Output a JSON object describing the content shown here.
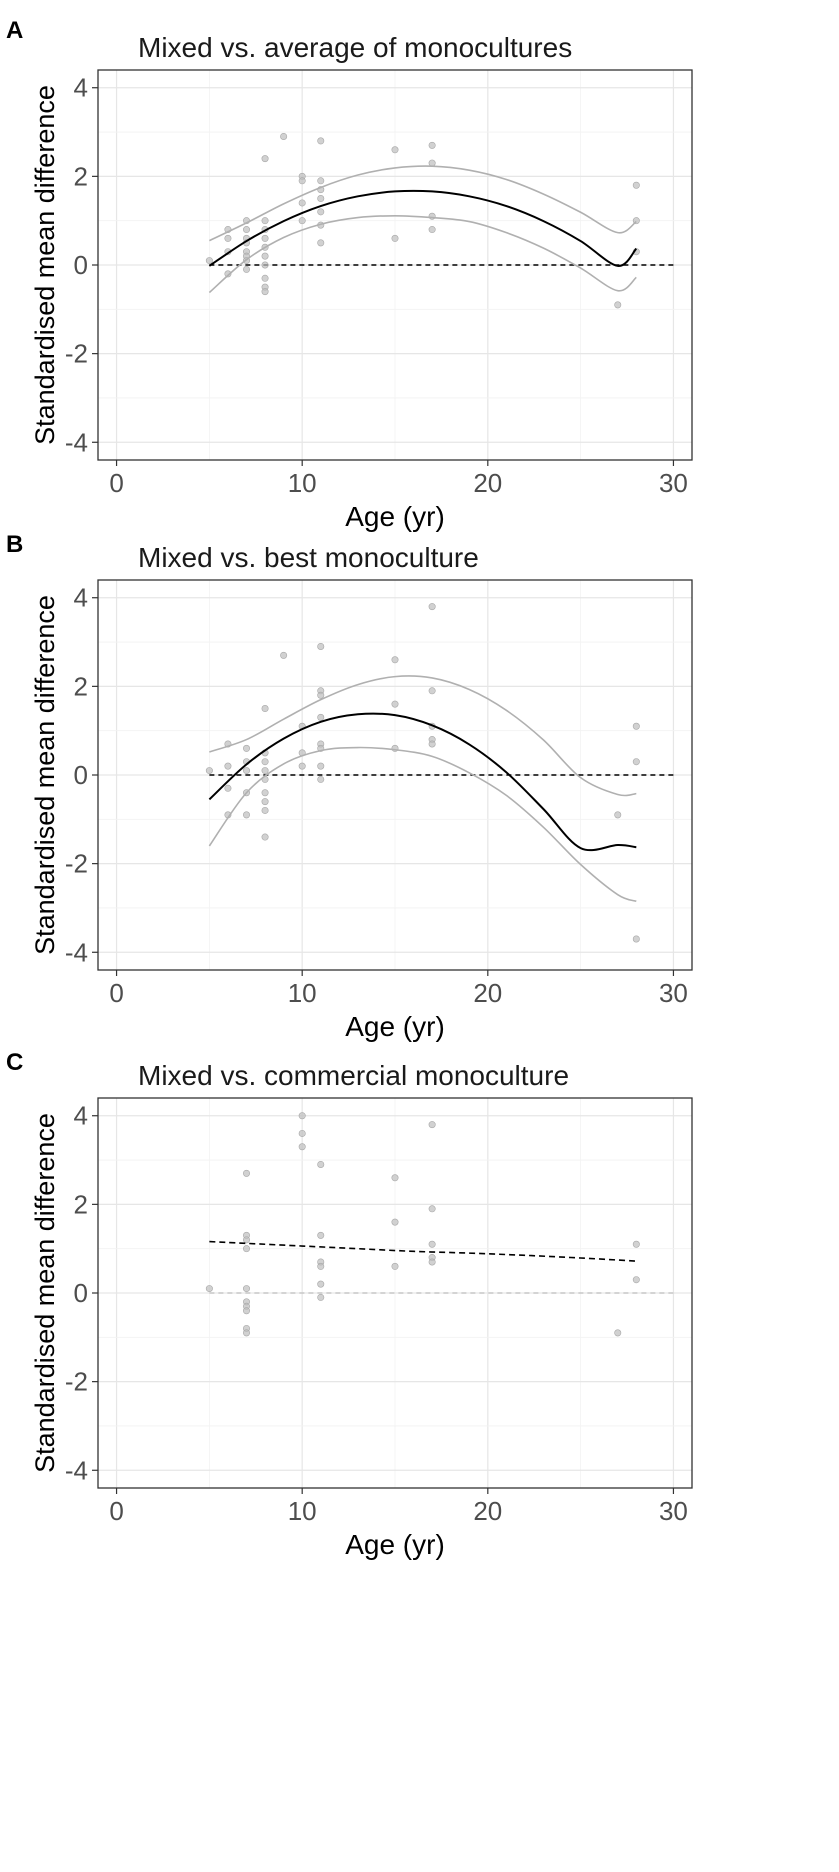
{
  "chart_data": [
    {
      "panel": "A",
      "type": "scatter",
      "title": "Mixed vs. average of monocultures",
      "xlabel": "Age (yr)",
      "ylabel": "Standardised mean difference",
      "xlim": [
        -1,
        31
      ],
      "ylim": [
        -4.4,
        4.4
      ],
      "xticks": [
        0,
        10,
        20,
        30
      ],
      "yticks": [
        -4,
        -2,
        0,
        2,
        4
      ],
      "reference_line": 0,
      "reference_style": "dark",
      "points": [
        [
          5,
          0.1
        ],
        [
          6,
          0.8
        ],
        [
          6,
          0.6
        ],
        [
          6,
          0.3
        ],
        [
          6,
          -0.2
        ],
        [
          7,
          1.0
        ],
        [
          7,
          0.8
        ],
        [
          7,
          0.6
        ],
        [
          7,
          0.5
        ],
        [
          7,
          0.3
        ],
        [
          7,
          0.2
        ],
        [
          7,
          0.1
        ],
        [
          7,
          -0.1
        ],
        [
          8,
          2.4
        ],
        [
          8,
          1.0
        ],
        [
          8,
          0.8
        ],
        [
          8,
          0.6
        ],
        [
          8,
          0.4
        ],
        [
          8,
          0.2
        ],
        [
          8,
          0.0
        ],
        [
          8,
          -0.3
        ],
        [
          8,
          -0.5
        ],
        [
          8,
          -0.6
        ],
        [
          9,
          2.9
        ],
        [
          10,
          2.0
        ],
        [
          10,
          1.9
        ],
        [
          10,
          1.4
        ],
        [
          10,
          1.0
        ],
        [
          11,
          2.8
        ],
        [
          11,
          1.9
        ],
        [
          11,
          1.7
        ],
        [
          11,
          1.5
        ],
        [
          11,
          1.2
        ],
        [
          11,
          0.9
        ],
        [
          11,
          0.5
        ],
        [
          15,
          2.6
        ],
        [
          15,
          0.6
        ],
        [
          17,
          2.7
        ],
        [
          17,
          2.3
        ],
        [
          17,
          1.1
        ],
        [
          17,
          0.8
        ],
        [
          27,
          -0.9
        ],
        [
          28,
          1.8
        ],
        [
          28,
          1.0
        ],
        [
          28,
          0.3
        ]
      ],
      "fit": {
        "x": [
          5,
          7,
          9,
          11,
          13,
          15,
          17,
          19,
          21,
          23,
          25,
          27,
          28
        ],
        "y": [
          -0.02,
          0.54,
          0.99,
          1.33,
          1.55,
          1.66,
          1.66,
          1.55,
          1.33,
          0.99,
          0.54,
          -0.02,
          0.37
        ]
      },
      "ci_upper": {
        "x": [
          5,
          7,
          9,
          11,
          13,
          15,
          17,
          19,
          21,
          23,
          25,
          27,
          28
        ],
        "y": [
          0.55,
          0.95,
          1.38,
          1.75,
          2.03,
          2.19,
          2.23,
          2.14,
          1.93,
          1.6,
          1.19,
          0.73,
          0.98
        ]
      },
      "ci_lower": {
        "x": [
          5,
          7,
          9,
          11,
          13,
          15,
          17,
          19,
          21,
          23,
          25,
          27,
          28
        ],
        "y": [
          -0.62,
          0.12,
          0.62,
          0.92,
          1.07,
          1.11,
          1.07,
          0.98,
          0.73,
          0.38,
          -0.07,
          -0.58,
          -0.28
        ]
      }
    },
    {
      "panel": "B",
      "type": "scatter",
      "title": "Mixed vs. best monoculture",
      "xlabel": "Age (yr)",
      "ylabel": "Standardised mean difference",
      "xlim": [
        -1,
        31
      ],
      "ylim": [
        -4.4,
        4.4
      ],
      "xticks": [
        0,
        10,
        20,
        30
      ],
      "yticks": [
        -4,
        -2,
        0,
        2,
        4
      ],
      "reference_line": 0,
      "reference_style": "dark",
      "points": [
        [
          5,
          0.1
        ],
        [
          6,
          0.7
        ],
        [
          6,
          0.2
        ],
        [
          6,
          -0.3
        ],
        [
          6,
          -0.9
        ],
        [
          7,
          0.6
        ],
        [
          7,
          0.3
        ],
        [
          7,
          0.1
        ],
        [
          7,
          -0.4
        ],
        [
          7,
          -0.9
        ],
        [
          8,
          1.5
        ],
        [
          8,
          0.5
        ],
        [
          8,
          0.3
        ],
        [
          8,
          0.1
        ],
        [
          8,
          -0.1
        ],
        [
          8,
          -0.4
        ],
        [
          8,
          -0.6
        ],
        [
          8,
          -0.8
        ],
        [
          8,
          -1.4
        ],
        [
          9,
          2.7
        ],
        [
          10,
          1.1
        ],
        [
          10,
          0.5
        ],
        [
          10,
          0.2
        ],
        [
          11,
          2.9
        ],
        [
          11,
          1.9
        ],
        [
          11,
          1.8
        ],
        [
          11,
          1.3
        ],
        [
          11,
          0.7
        ],
        [
          11,
          0.6
        ],
        [
          11,
          0.2
        ],
        [
          11,
          -0.1
        ],
        [
          15,
          2.6
        ],
        [
          15,
          1.6
        ],
        [
          15,
          0.6
        ],
        [
          17,
          3.8
        ],
        [
          17,
          1.9
        ],
        [
          17,
          1.1
        ],
        [
          17,
          0.8
        ],
        [
          17,
          0.7
        ],
        [
          27,
          -0.9
        ],
        [
          28,
          1.1
        ],
        [
          28,
          0.3
        ],
        [
          28,
          -3.7
        ]
      ],
      "fit": {
        "x": [
          5,
          7,
          9,
          11,
          13,
          15,
          17,
          19,
          21,
          23,
          25,
          27,
          28
        ],
        "y": [
          -0.55,
          0.24,
          0.82,
          1.2,
          1.37,
          1.35,
          1.12,
          0.69,
          0.06,
          -0.77,
          -1.65,
          -1.58,
          -1.63
        ]
      },
      "ci_upper": {
        "x": [
          5,
          7,
          9,
          11,
          13,
          15,
          17,
          19,
          21,
          23,
          25,
          27,
          28
        ],
        "y": [
          0.52,
          0.8,
          1.26,
          1.7,
          2.04,
          2.22,
          2.19,
          1.93,
          1.46,
          0.79,
          -0.06,
          -0.44,
          -0.42
        ]
      },
      "ci_lower": {
        "x": [
          5,
          7,
          9,
          11,
          13,
          15,
          17,
          19,
          21,
          23,
          25,
          27,
          28
        ],
        "y": [
          -1.6,
          -0.4,
          0.25,
          0.55,
          0.62,
          0.57,
          0.42,
          0.05,
          -0.46,
          -1.18,
          -2.02,
          -2.7,
          -2.85
        ]
      }
    },
    {
      "panel": "C",
      "type": "scatter",
      "title": "Mixed vs. commercial monoculture",
      "xlabel": "Age (yr)",
      "ylabel": "Standardised mean difference",
      "xlim": [
        -1,
        31
      ],
      "ylim": [
        -4.4,
        4.4
      ],
      "xticks": [
        0,
        10,
        20,
        30
      ],
      "yticks": [
        -4,
        -2,
        0,
        2,
        4
      ],
      "reference_line": 0,
      "reference_style": "light",
      "points": [
        [
          5,
          0.1
        ],
        [
          7,
          2.7
        ],
        [
          7,
          1.3
        ],
        [
          7,
          1.2
        ],
        [
          7,
          1.0
        ],
        [
          7,
          0.1
        ],
        [
          7,
          -0.2
        ],
        [
          7,
          -0.3
        ],
        [
          7,
          -0.4
        ],
        [
          7,
          -0.8
        ],
        [
          7,
          -0.9
        ],
        [
          10,
          4.0
        ],
        [
          10,
          3.6
        ],
        [
          10,
          3.3
        ],
        [
          11,
          2.9
        ],
        [
          11,
          1.3
        ],
        [
          11,
          0.7
        ],
        [
          11,
          0.6
        ],
        [
          11,
          0.2
        ],
        [
          11,
          -0.1
        ],
        [
          15,
          2.6
        ],
        [
          15,
          1.6
        ],
        [
          15,
          0.6
        ],
        [
          17,
          3.8
        ],
        [
          17,
          1.9
        ],
        [
          17,
          1.1
        ],
        [
          17,
          0.8
        ],
        [
          17,
          0.7
        ],
        [
          27,
          -0.9
        ],
        [
          28,
          1.1
        ],
        [
          28,
          0.3
        ]
      ],
      "fit": {
        "x": [
          5,
          7,
          10,
          13,
          16,
          19,
          22,
          25,
          28
        ],
        "y": [
          1.16,
          1.12,
          1.06,
          1.0,
          0.94,
          0.9,
          0.85,
          0.79,
          0.72
        ]
      },
      "fit_style": "dashed"
    }
  ]
}
